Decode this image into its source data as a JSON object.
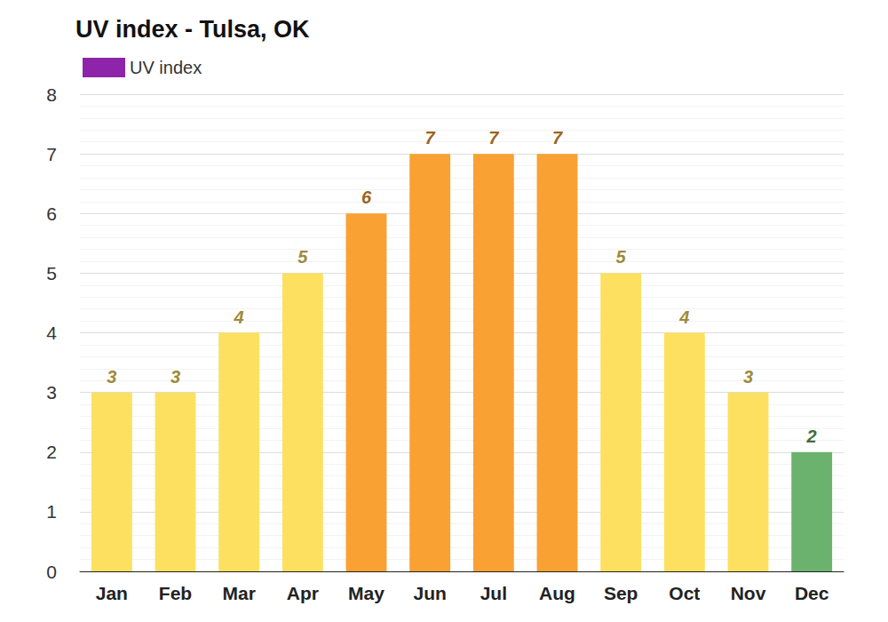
{
  "chart_data": {
    "type": "bar",
    "title": "UV index - Tulsa, OK",
    "categories": [
      "Jan",
      "Feb",
      "Mar",
      "Apr",
      "May",
      "Jun",
      "Jul",
      "Aug",
      "Sep",
      "Oct",
      "Nov",
      "Dec"
    ],
    "series": [
      {
        "name": "UV index",
        "color": "#8e24aa",
        "values": [
          3,
          3,
          4,
          5,
          6,
          7,
          7,
          7,
          5,
          4,
          3,
          2
        ],
        "colors": [
          "#fde05f",
          "#fde05f",
          "#fde05f",
          "#fde05f",
          "#f9a133",
          "#f9a133",
          "#f9a133",
          "#f9a133",
          "#fde05f",
          "#fde05f",
          "#fde05f",
          "#6bb26e"
        ]
      }
    ],
    "ylim": [
      0,
      8
    ],
    "yticks": [
      0,
      1,
      2,
      3,
      4,
      5,
      6,
      7,
      8
    ],
    "grid": true,
    "data_labels": true,
    "legend": "top-left"
  }
}
